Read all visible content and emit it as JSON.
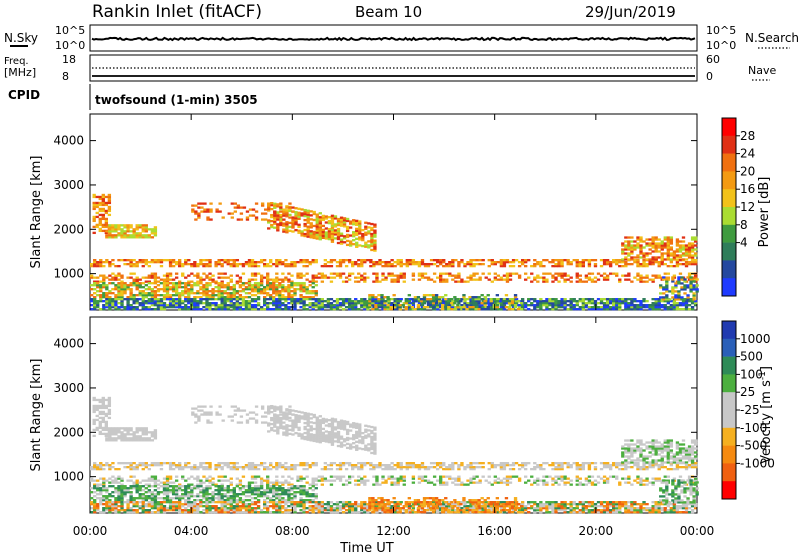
{
  "header": {
    "station": "Rankin Inlet (fitACF)",
    "beam": "Beam 10",
    "date": "29/Jun/2019"
  },
  "top_panels": {
    "nsky_label": "N.Sky",
    "nsky_tick_high": "10^5",
    "nsky_tick_low": "10^0",
    "nsearch_label": "N.Search",
    "nsearch_tick_high": "10^5",
    "nsearch_tick_low": "10^0",
    "freq_label_line1": "Freq.",
    "freq_label_line2": "[MHz]",
    "freq_tick_high": "18",
    "freq_tick_low": "8",
    "nave_label": "Nave",
    "nave_tick_high": "60",
    "nave_tick_low": "0",
    "cpid_label": "CPID",
    "cpid_text": "twofsound (1-min) 3505"
  },
  "colors": {
    "power_scale": [
      "#1f3bff",
      "#24489f",
      "#2f7d5a",
      "#3f9b3f",
      "#aadc32",
      "#f2c21a",
      "#f39a12",
      "#f07010",
      "#e03015",
      "#ff0000"
    ],
    "velocity_scale": [
      "#203ab0",
      "#2a5fb8",
      "#2e8b57",
      "#4caf3f",
      "#c8c8c8",
      "#c8c8c8",
      "#f5b020",
      "#f58a10",
      "#f06010",
      "#ff0000"
    ]
  },
  "chart_data": [
    {
      "type": "heatmap",
      "name": "power",
      "xlabel": "",
      "ylabel": "Slant Range [km]",
      "colorbar_label": "Power [dB]",
      "colorbar_ticks": [
        "28",
        "24",
        "20",
        "16",
        "12",
        "8",
        "4"
      ],
      "ylim": [
        180,
        4600
      ],
      "yticks": [
        "1000",
        "2000",
        "3000",
        "4000"
      ],
      "xlim": [
        "00:00",
        "24:00"
      ]
    },
    {
      "type": "heatmap",
      "name": "velocity",
      "xlabel": "Time UT",
      "ylabel": "Slant Range [km]",
      "colorbar_label": "Velocity [m s^-1]",
      "colorbar_ticks": [
        "1000",
        "500",
        "100",
        "25",
        "-25",
        "-100",
        "-500",
        "-1000"
      ],
      "ylim": [
        180,
        4600
      ],
      "yticks": [
        "1000",
        "2000",
        "3000",
        "4000"
      ],
      "xticks": [
        "00:00",
        "04:00",
        "08:00",
        "12:00",
        "16:00",
        "20:00",
        "00:00"
      ],
      "xlim": [
        "00:00",
        "24:00"
      ]
    }
  ]
}
